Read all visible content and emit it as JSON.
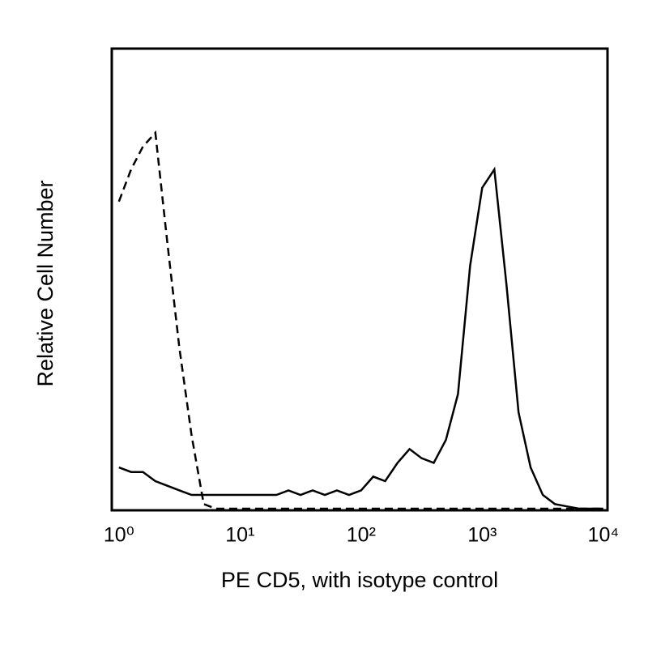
{
  "chart_data": {
    "type": "line",
    "x_label": "PE CD5, with isotype control",
    "y_label": "Relative Cell Number",
    "xscale": "log",
    "xlim": [
      0.9,
      10500
    ],
    "ylim": [
      0,
      100
    ],
    "xticks": [
      {
        "value": 1,
        "label": "10⁰"
      },
      {
        "value": 10,
        "label": "10¹"
      },
      {
        "value": 100,
        "label": "10²"
      },
      {
        "value": 1000,
        "label": "10³"
      },
      {
        "value": 10000,
        "label": "10⁴"
      }
    ],
    "grid": false,
    "x": [
      1,
      1.26,
      1.58,
      2,
      2.51,
      3.16,
      3.98,
      5.01,
      6.31,
      7.94,
      10,
      12.6,
      15.8,
      20,
      25.1,
      31.6,
      39.8,
      50.1,
      63.1,
      79.4,
      100,
      126,
      158,
      200,
      251,
      316,
      398,
      501,
      631,
      794,
      1000,
      1259,
      1585,
      1995,
      2512,
      3162,
      3981,
      5012,
      6310,
      7943,
      10000
    ],
    "series": [
      {
        "color": "#000000",
        "dash": true,
        "values": [
          67,
          74,
          79,
          82,
          58,
          35,
          16,
          1,
          0,
          0,
          0,
          0,
          0,
          0,
          0,
          0,
          0,
          0,
          0,
          0,
          0,
          0,
          0,
          0,
          0,
          0,
          0,
          0,
          0,
          0,
          0,
          0,
          0,
          0,
          0,
          0,
          0,
          0,
          0,
          0,
          0
        ]
      },
      {
        "color": "#000000",
        "dash": false,
        "values": [
          9,
          8,
          8,
          6,
          5,
          4,
          3,
          3,
          3,
          3,
          3,
          3,
          3,
          3,
          4,
          3,
          4,
          3,
          4,
          3,
          4,
          7,
          6,
          10,
          13,
          11,
          10,
          15,
          25,
          53,
          70,
          74,
          49,
          21,
          9,
          3,
          1,
          0.5,
          0,
          0,
          0
        ]
      }
    ]
  }
}
